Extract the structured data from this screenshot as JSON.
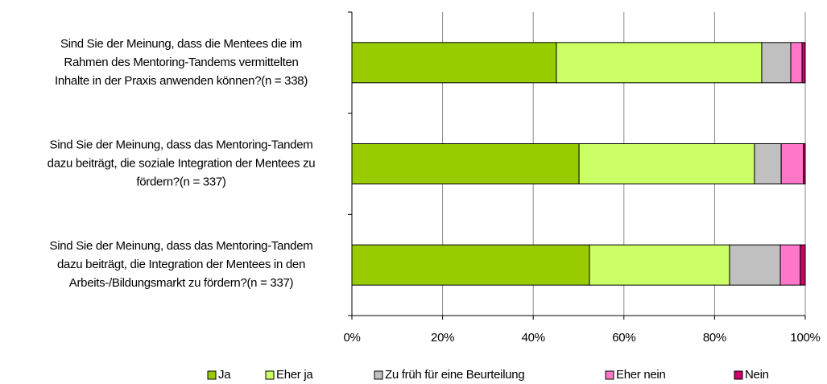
{
  "chart_data": {
    "type": "stacked-bar-horizontal",
    "categories": [
      [
        "Sind Sie der Meinung, dass die Mentees die im",
        "Rahmen des Mentoring-Tandems vermittelten",
        "Inhalte in der Praxis anwenden können?(n = 338)"
      ],
      [
        "Sind Sie der Meinung, dass das Mentoring-Tandem",
        "dazu beiträgt, die soziale Integration der Mentees zu",
        "fördern?(n = 337)"
      ],
      [
        "Sind Sie der Meinung, dass das Mentoring-Tandem",
        "dazu beiträgt, die Integration der Mentees in den",
        "Arbeits-/Bildungsmarkt zu fördern?(n = 337)"
      ]
    ],
    "series": [
      {
        "name": "Ja",
        "color": "#99cc00",
        "values": [
          45.1,
          50.1,
          52.4
        ]
      },
      {
        "name": "Eher ja",
        "color": "#ccff66",
        "values": [
          45.3,
          38.7,
          30.9
        ]
      },
      {
        "name": "Zu früh für eine Beurteilung",
        "color": "#c0c0c0",
        "values": [
          6.4,
          5.9,
          11.2
        ]
      },
      {
        "name": "Eher nein",
        "color": "#ff77c8",
        "values": [
          2.5,
          4.9,
          4.4
        ]
      },
      {
        "name": "Nein",
        "color": "#cc0066",
        "values": [
          0.7,
          0.4,
          1.1
        ]
      }
    ],
    "xlim": [
      0,
      100
    ],
    "xticks": [
      {
        "value": 0,
        "label": "0%"
      },
      {
        "value": 20,
        "label": "20%"
      },
      {
        "value": 40,
        "label": "40%"
      },
      {
        "value": 60,
        "label": "60%"
      },
      {
        "value": 80,
        "label": "80%"
      },
      {
        "value": 100,
        "label": "100%"
      }
    ],
    "grid": true,
    "legend": "bottom"
  }
}
